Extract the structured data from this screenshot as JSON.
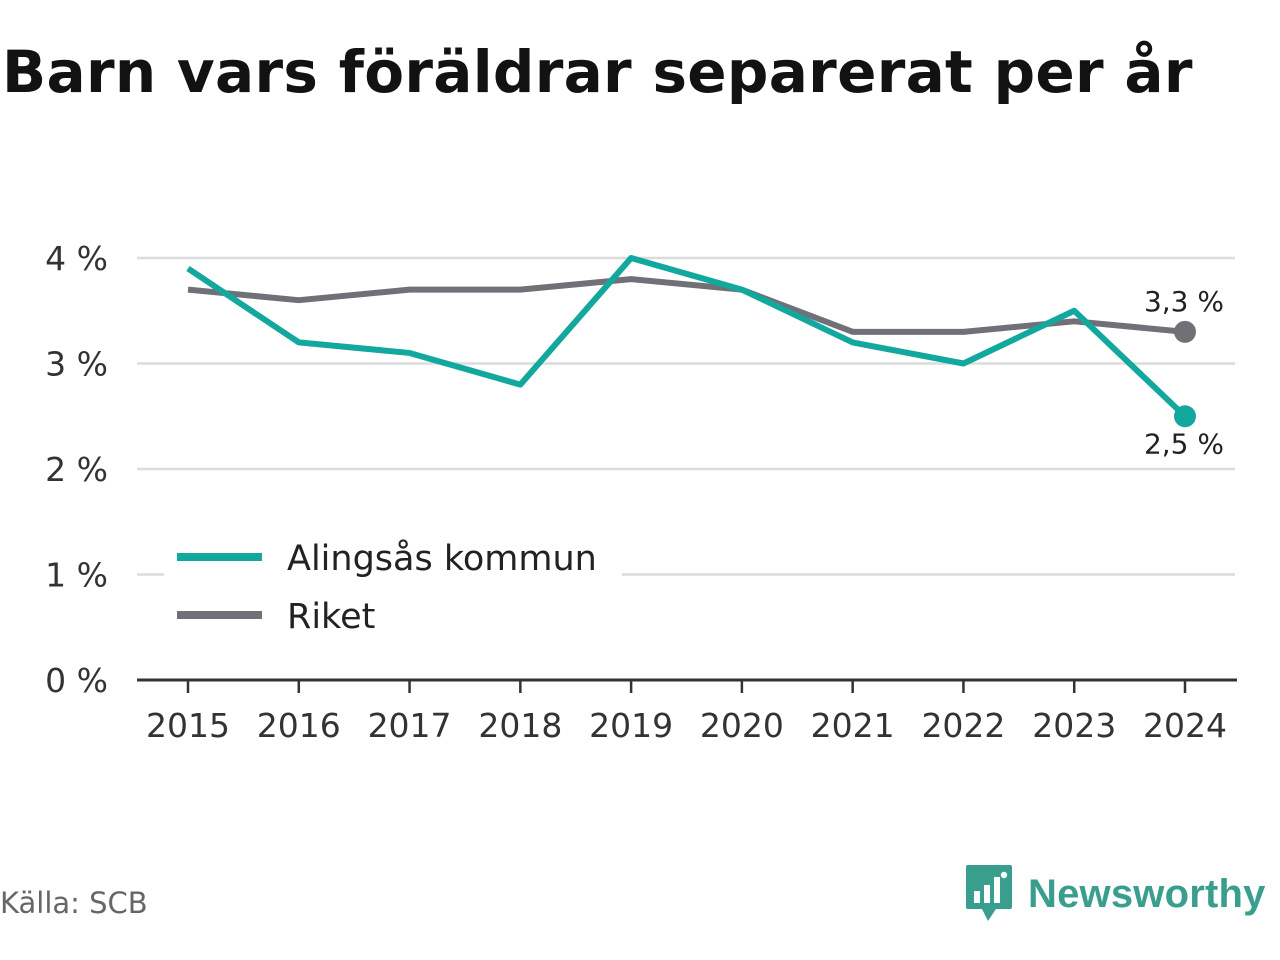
{
  "title": "Barn vars föräldrar separerat per år",
  "source": "Källa: SCB",
  "brand": "Newsworthy",
  "colors": {
    "alingsas": "#13a89e",
    "riket": "#727077",
    "grid": "#dcdcdc",
    "axis": "#333333"
  },
  "chart_data": {
    "type": "line",
    "title": "Barn vars föräldrar separerat per år",
    "categories": [
      "2015",
      "2016",
      "2017",
      "2018",
      "2019",
      "2020",
      "2021",
      "2022",
      "2023",
      "2024"
    ],
    "series": [
      {
        "name": "Alingsås kommun",
        "color": "#13a89e",
        "values": [
          3.9,
          3.2,
          3.1,
          2.8,
          4.0,
          3.7,
          3.2,
          3.0,
          3.5,
          2.5
        ],
        "end_label": "2,5 %"
      },
      {
        "name": "Riket",
        "color": "#727077",
        "values": [
          3.7,
          3.6,
          3.7,
          3.7,
          3.8,
          3.7,
          3.3,
          3.3,
          3.4,
          3.3
        ],
        "end_label": "3,3 %"
      }
    ],
    "y_ticks": [
      0,
      1,
      2,
      3,
      4
    ],
    "y_tick_labels": [
      "0 %",
      "1 %",
      "2 %",
      "3 %",
      "4 %"
    ],
    "ylim": [
      0,
      4
    ],
    "grid": true,
    "legend_position": "bottom-left",
    "xlabel": "",
    "ylabel": ""
  }
}
